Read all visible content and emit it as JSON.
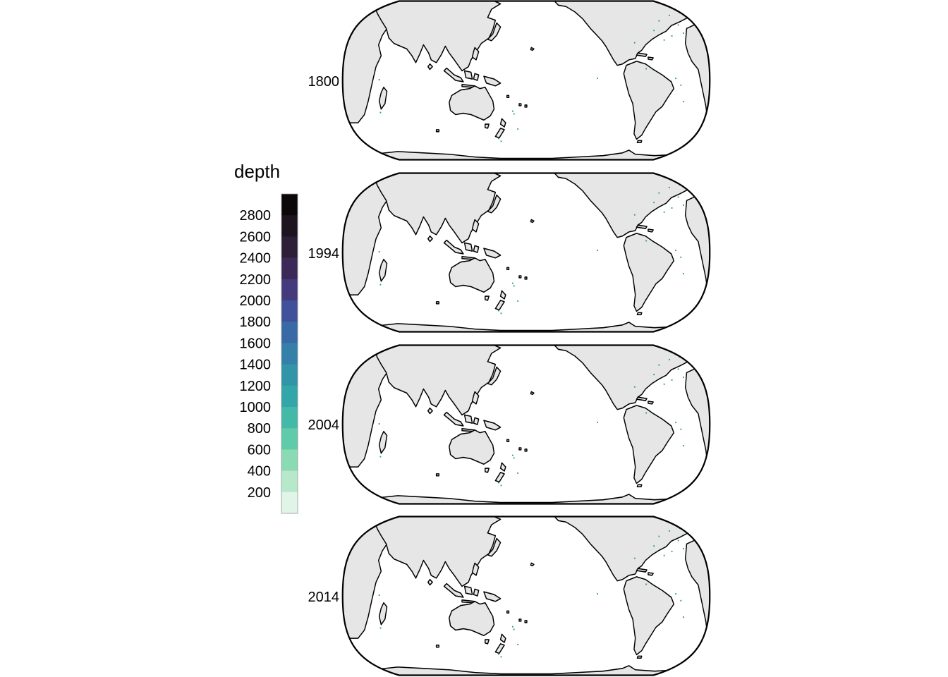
{
  "legend": {
    "title": "depth",
    "ticks": [
      "2800",
      "2600",
      "2400",
      "2200",
      "2000",
      "1800",
      "1600",
      "1400",
      "1200",
      "1000",
      "800",
      "600",
      "400",
      "200"
    ],
    "colors": [
      "#0c0709",
      "#1e1420",
      "#2e1f38",
      "#3b2a57",
      "#443a7c",
      "#40509a",
      "#396aa6",
      "#3480a8",
      "#3294a9",
      "#33a6a9",
      "#45b9a8",
      "#5fcba8",
      "#8adbb3",
      "#b6e8c9",
      "#e0f4e8"
    ]
  },
  "panels": [
    {
      "label": "1800"
    },
    {
      "label": "1994"
    },
    {
      "label": "2004"
    },
    {
      "label": "2014"
    }
  ],
  "colors": {
    "land": "#e6e6e6",
    "ocean": "#ffffff",
    "outline": "#000000",
    "profile_dots": "#2e9a93"
  }
}
